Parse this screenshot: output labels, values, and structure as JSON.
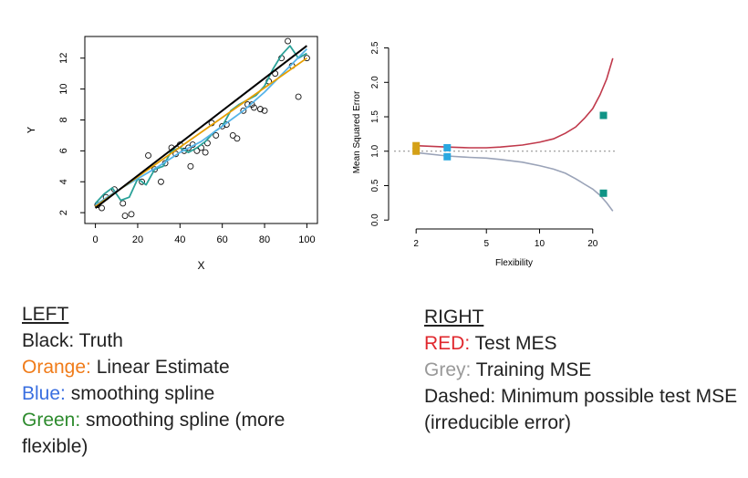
{
  "chart_data": [
    {
      "type": "scatter",
      "xlabel": "X",
      "ylabel": "Y",
      "xlim": [
        -5,
        105
      ],
      "ylim": [
        1.3,
        13.4
      ],
      "xticks": [
        "0",
        "20",
        "40",
        "60",
        "80",
        "100"
      ],
      "yticks": [
        "2",
        "4",
        "6",
        "8",
        "10",
        "12"
      ],
      "points": {
        "x": [
          1,
          3,
          5,
          9,
          13,
          14,
          17,
          22,
          25,
          28,
          31,
          33,
          36,
          38,
          40,
          42,
          44,
          45,
          46,
          48,
          50,
          52,
          53,
          55,
          57,
          60,
          62,
          65,
          67,
          70,
          72,
          74,
          75,
          78,
          80,
          82,
          85,
          88,
          91,
          93,
          96,
          100
        ],
        "y": [
          2.5,
          2.3,
          3.0,
          3.5,
          2.6,
          1.8,
          1.9,
          4.0,
          5.7,
          4.8,
          4.0,
          5.2,
          6.2,
          5.8,
          6.4,
          6.0,
          6.2,
          5.0,
          6.4,
          6.0,
          6.2,
          5.9,
          6.5,
          7.8,
          7.0,
          7.6,
          7.7,
          7.0,
          6.8,
          8.6,
          9.0,
          9.0,
          8.8,
          8.7,
          8.6,
          10.5,
          11.0,
          12.0,
          13.1,
          11.5,
          9.5,
          12.0
        ]
      },
      "series": [
        {
          "color": "#000000",
          "x": [
            0,
            100
          ],
          "y": [
            2.3,
            12.8
          ]
        },
        {
          "color": "#e69f00",
          "x": [
            0,
            100
          ],
          "y": [
            2.4,
            12.0
          ]
        },
        {
          "color": "#56b4e9",
          "x": [
            0,
            10,
            20,
            30,
            40,
            50,
            60,
            70,
            80,
            90,
            100
          ],
          "y": [
            2.5,
            3.4,
            4.2,
            5.0,
            5.9,
            6.6,
            7.6,
            8.6,
            9.8,
            11.2,
            12.6
          ]
        },
        {
          "color": "#2aa198",
          "x": [
            0,
            4,
            8,
            12,
            16,
            20,
            24,
            28,
            32,
            36,
            40,
            44,
            48,
            52,
            56,
            60,
            64,
            68,
            72,
            76,
            80,
            84,
            88,
            92,
            96,
            100
          ],
          "y": [
            2.6,
            3.2,
            3.6,
            2.8,
            3.0,
            4.2,
            3.8,
            4.8,
            5.0,
            6.0,
            6.2,
            5.9,
            6.2,
            6.6,
            7.2,
            7.6,
            8.6,
            9.0,
            9.3,
            9.6,
            10.2,
            11.3,
            12.2,
            12.8,
            12.0,
            12.3
          ]
        }
      ]
    },
    {
      "type": "line",
      "xlabel": "Flexibility",
      "ylabel": "Mean Squared Error",
      "xlim": [
        1.5,
        27
      ],
      "ylim": [
        -0.05,
        2.6
      ],
      "xticks": [
        {
          "v": 2,
          "label": "2"
        },
        {
          "v": 5,
          "label": "5"
        },
        {
          "v": 10,
          "label": "10"
        },
        {
          "v": 20,
          "label": "20"
        }
      ],
      "yticks": [
        "0.0",
        "0.5",
        "1.0",
        "1.5",
        "2.0",
        "2.5"
      ],
      "reference_line": {
        "y": 1.0,
        "style": "dashed",
        "color": "#888888"
      },
      "series": [
        {
          "color": "#c0394b",
          "x": [
            2,
            3,
            4,
            5,
            6,
            8,
            10,
            12,
            14,
            16,
            18,
            20,
            22,
            24,
            26
          ],
          "y": [
            1.08,
            1.06,
            1.05,
            1.05,
            1.06,
            1.09,
            1.13,
            1.18,
            1.26,
            1.35,
            1.48,
            1.62,
            1.82,
            2.05,
            2.35
          ]
        },
        {
          "color": "#9aa3b8",
          "x": [
            2,
            3,
            4,
            5,
            6,
            8,
            10,
            12,
            14,
            16,
            18,
            20,
            22,
            24,
            26
          ],
          "y": [
            0.98,
            0.93,
            0.91,
            0.9,
            0.88,
            0.84,
            0.79,
            0.74,
            0.68,
            0.6,
            0.52,
            0.45,
            0.36,
            0.25,
            0.13
          ]
        }
      ],
      "markers": [
        {
          "x": 2,
          "y": 1.08,
          "color": "#d4a017"
        },
        {
          "x": 2,
          "y": 1.0,
          "color": "#d4a017"
        },
        {
          "x": 3,
          "y": 1.05,
          "color": "#2aa8e0"
        },
        {
          "x": 3,
          "y": 0.92,
          "color": "#2aa8e0"
        },
        {
          "x": 23,
          "y": 1.52,
          "color": "#109486"
        },
        {
          "x": 23,
          "y": 0.39,
          "color": "#109486"
        }
      ]
    }
  ],
  "legend_left": {
    "heading": "LEFT",
    "items": [
      {
        "key": "Black:",
        "text": " Truth",
        "key_color": "#222222"
      },
      {
        "key": "Orange:",
        "text": " Linear Estimate",
        "key_color": "#f07c1a"
      },
      {
        "key": "Blue:",
        "text": "  smoothing spline",
        "key_color": "#3a6fe0"
      },
      {
        "key": "Green:",
        "text": "  smoothing spline (more flexible)",
        "key_color": "#2e8b2e"
      }
    ]
  },
  "legend_right": {
    "heading": "RIGHT",
    "items": [
      {
        "key": "RED:",
        "text": " Test MES",
        "key_color": "#e0282e"
      },
      {
        "key": "Grey:",
        "text": " Training MSE",
        "key_color": "#999999"
      },
      {
        "key": "Dashed:",
        "text": "  Minimum possible test MSE (irreducible error)",
        "key_color": "#222222"
      }
    ]
  }
}
